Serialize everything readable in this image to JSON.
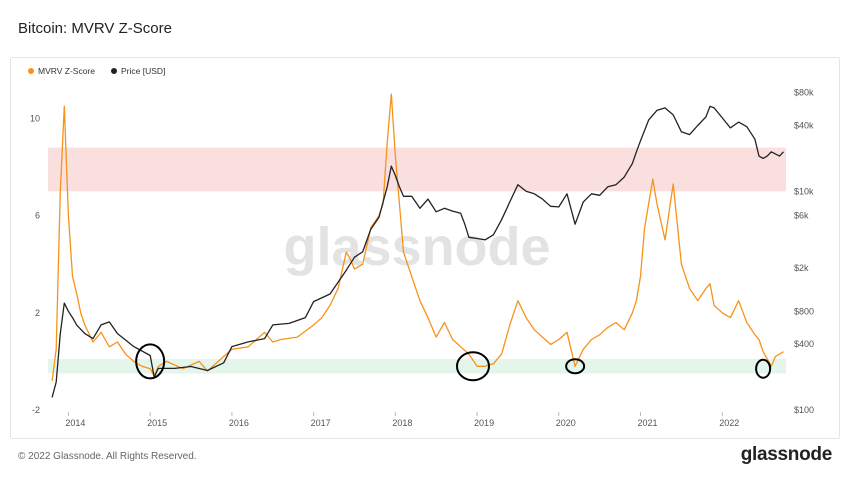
{
  "title": "Bitcoin: MVRV Z-Score",
  "footer": "© 2022 Glassnode. All Rights Reserved.",
  "brand": "glassnode",
  "watermark": "glassnode",
  "colors": {
    "zscore": "#f7931a",
    "price": "#222222",
    "red_band": "#f9d7d7",
    "green_band": "#ddf3e6",
    "circle": "#000000"
  },
  "chart_data": {
    "type": "line",
    "title": "Bitcoin: MVRV Z-Score",
    "legend": [
      "MVRV Z-Score",
      "Price [USD]"
    ],
    "legend_position": "top-left",
    "x_ticks": [
      "2014",
      "2015",
      "2016",
      "2017",
      "2018",
      "2019",
      "2020",
      "2021",
      "2022"
    ],
    "y_left_ticks": [
      "-2",
      "2",
      "6",
      "10"
    ],
    "y_left_range": [
      -2,
      11.5
    ],
    "y_right_ticks": [
      "$100",
      "$400",
      "$800",
      "$2k",
      "$6k",
      "$10k",
      "$40k",
      "$80k"
    ],
    "y_right_log_range": [
      100,
      100000
    ],
    "bands": [
      {
        "name": "red",
        "from": 7,
        "to": 8.8
      },
      {
        "name": "green",
        "from": -0.5,
        "to": 0.1
      }
    ],
    "series": [
      {
        "name": "MVRV Z-Score",
        "x": [
          2013.8,
          2013.85,
          2013.9,
          2013.95,
          2014.0,
          2014.05,
          2014.1,
          2014.15,
          2014.2,
          2014.3,
          2014.4,
          2014.5,
          2014.6,
          2014.7,
          2014.8,
          2014.9,
          2015.0,
          2015.05,
          2015.1,
          2015.2,
          2015.4,
          2015.6,
          2015.7,
          2015.9,
          2016.0,
          2016.2,
          2016.4,
          2016.5,
          2016.6,
          2016.8,
          2017.0,
          2017.1,
          2017.2,
          2017.3,
          2017.4,
          2017.45,
          2017.5,
          2017.6,
          2017.7,
          2017.8,
          2017.85,
          2017.9,
          2017.95,
          2018.0,
          2018.05,
          2018.1,
          2018.2,
          2018.3,
          2018.4,
          2018.5,
          2018.6,
          2018.7,
          2018.8,
          2018.9,
          2019.0,
          2019.1,
          2019.2,
          2019.3,
          2019.4,
          2019.5,
          2019.6,
          2019.7,
          2019.8,
          2019.9,
          2020.0,
          2020.1,
          2020.2,
          2020.3,
          2020.4,
          2020.5,
          2020.6,
          2020.7,
          2020.8,
          2020.9,
          2020.95,
          2021.0,
          2021.05,
          2021.1,
          2021.15,
          2021.2,
          2021.3,
          2021.4,
          2021.5,
          2021.6,
          2021.7,
          2021.8,
          2021.85,
          2021.9,
          2022.0,
          2022.1,
          2022.2,
          2022.3,
          2022.4,
          2022.45,
          2022.5,
          2022.55,
          2022.6,
          2022.65,
          2022.7,
          2022.75
        ],
        "values": [
          -0.8,
          0.5,
          7,
          10.5,
          6,
          3.5,
          2.8,
          2,
          1.5,
          0.8,
          1.2,
          0.6,
          0.8,
          0.3,
          0,
          -0.2,
          -0.3,
          -0.6,
          -0.2,
          0,
          -0.3,
          0,
          -0.4,
          0.2,
          0.5,
          0.6,
          1.2,
          0.8,
          0.9,
          1.0,
          1.5,
          1.8,
          2.3,
          3,
          4.5,
          4.2,
          3.8,
          4.0,
          5.5,
          6,
          6.5,
          9,
          11,
          8.5,
          6.5,
          4.5,
          3.5,
          2.5,
          1.8,
          1.0,
          1.6,
          0.9,
          0.6,
          0.3,
          -0.2,
          -0.2,
          -0.1,
          0.3,
          1.5,
          2.5,
          1.8,
          1.3,
          1.0,
          0.7,
          0.9,
          1.2,
          -0.2,
          0.5,
          0.9,
          1.1,
          1.4,
          1.6,
          1.3,
          2.0,
          2.5,
          3.5,
          5.5,
          6.5,
          7.5,
          6.5,
          5.0,
          7.3,
          4.0,
          3.0,
          2.5,
          3.0,
          3.2,
          2.3,
          2.0,
          1.8,
          2.5,
          1.6,
          1.1,
          0.9,
          0.4,
          0.1,
          -0.2,
          0.2,
          0.3,
          0.4
        ]
      },
      {
        "name": "Price [USD]",
        "x": [
          2013.8,
          2013.85,
          2013.9,
          2013.95,
          2014.0,
          2014.05,
          2014.1,
          2014.2,
          2014.3,
          2014.4,
          2014.5,
          2014.6,
          2014.8,
          2015.0,
          2015.05,
          2015.1,
          2015.3,
          2015.5,
          2015.7,
          2015.9,
          2016.0,
          2016.2,
          2016.4,
          2016.5,
          2016.7,
          2016.9,
          2017.0,
          2017.2,
          2017.4,
          2017.5,
          2017.6,
          2017.7,
          2017.8,
          2017.9,
          2017.95,
          2018.0,
          2018.05,
          2018.1,
          2018.2,
          2018.3,
          2018.4,
          2018.5,
          2018.6,
          2018.7,
          2018.8,
          2018.85,
          2018.9,
          2019.0,
          2019.1,
          2019.2,
          2019.3,
          2019.4,
          2019.5,
          2019.6,
          2019.7,
          2019.8,
          2019.9,
          2020.0,
          2020.1,
          2020.2,
          2020.3,
          2020.4,
          2020.5,
          2020.6,
          2020.7,
          2020.8,
          2020.9,
          2020.95,
          2021.0,
          2021.1,
          2021.2,
          2021.3,
          2021.4,
          2021.5,
          2021.6,
          2021.7,
          2021.8,
          2021.85,
          2021.9,
          2022.0,
          2022.1,
          2022.2,
          2022.3,
          2022.4,
          2022.45,
          2022.5,
          2022.55,
          2022.6,
          2022.7,
          2022.75
        ],
        "values": [
          130,
          180,
          500,
          950,
          800,
          700,
          600,
          500,
          450,
          600,
          640,
          500,
          380,
          315,
          200,
          240,
          240,
          250,
          230,
          270,
          380,
          420,
          450,
          600,
          620,
          700,
          980,
          1150,
          1900,
          2500,
          2800,
          4500,
          5800,
          11000,
          17000,
          14000,
          11000,
          9000,
          9000,
          7000,
          8500,
          6500,
          7000,
          6600,
          6300,
          5000,
          3800,
          3700,
          3600,
          4000,
          5500,
          8000,
          11500,
          10000,
          9500,
          8500,
          7300,
          7200,
          9500,
          5000,
          8000,
          9500,
          9200,
          11000,
          11500,
          13500,
          18000,
          23000,
          29000,
          45000,
          55000,
          58000,
          50000,
          35000,
          33000,
          40000,
          48000,
          60000,
          58000,
          47000,
          38000,
          43000,
          39000,
          30000,
          21000,
          20000,
          21000,
          23000,
          21000,
          23000
        ]
      }
    ],
    "annotations": [
      {
        "type": "circle",
        "x": 2015.0,
        "y": 0.0
      },
      {
        "type": "circle",
        "x": 2018.95,
        "y": -0.2
      },
      {
        "type": "circle",
        "x": 2020.2,
        "y": -0.2
      },
      {
        "type": "circle",
        "x": 2022.5,
        "y": -0.3
      }
    ]
  }
}
